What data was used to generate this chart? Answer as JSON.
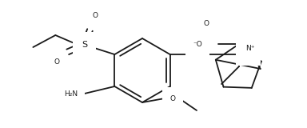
{
  "bg": "#ffffff",
  "lc": "#1a1a1a",
  "lw": 1.3,
  "fs": 6.5,
  "xlim": [
    0,
    384
  ],
  "ylim": [
    0,
    160
  ]
}
